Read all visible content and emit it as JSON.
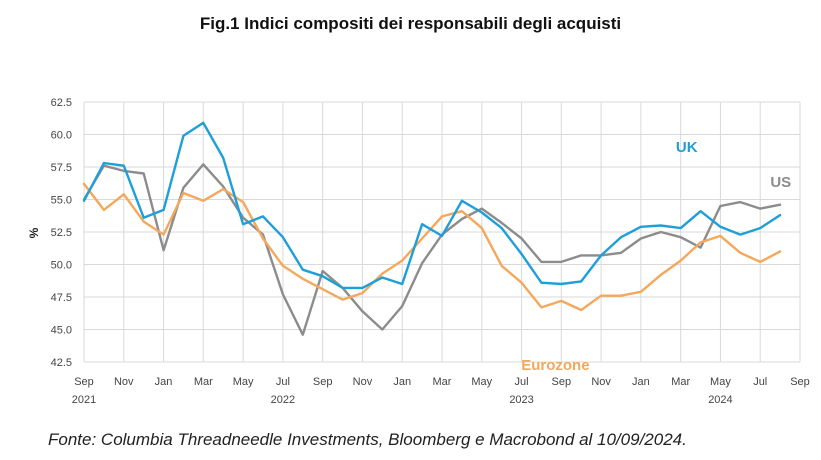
{
  "chart_data": {
    "type": "line",
    "title": "Fig.1 Indici compositi dei responsabili degli acquisti",
    "ylabel": "%",
    "ylim": [
      42.5,
      62.5
    ],
    "yticks": [
      "62.5",
      "60.0",
      "57.5",
      "55.0",
      "52.5",
      "50.0",
      "47.5",
      "45.0",
      "42.5"
    ],
    "grid": true,
    "x": [
      "2021-09",
      "2021-10",
      "2021-11",
      "2021-12",
      "2022-01",
      "2022-02",
      "2022-03",
      "2022-04",
      "2022-05",
      "2022-06",
      "2022-07",
      "2022-08",
      "2022-09",
      "2022-10",
      "2022-11",
      "2022-12",
      "2023-01",
      "2023-02",
      "2023-03",
      "2023-04",
      "2023-05",
      "2023-06",
      "2023-07",
      "2023-08",
      "2023-09",
      "2023-10",
      "2023-11",
      "2023-12",
      "2024-01",
      "2024-02",
      "2024-03",
      "2024-04",
      "2024-05",
      "2024-06",
      "2024-07",
      "2024-08"
    ],
    "x_ticks": [
      {
        "month": "Sep",
        "year": "2021",
        "date": "2021-09"
      },
      {
        "month": "Nov",
        "year": "",
        "date": "2021-11"
      },
      {
        "month": "Jan",
        "year": "",
        "date": "2022-01"
      },
      {
        "month": "Mar",
        "year": "",
        "date": "2022-03"
      },
      {
        "month": "May",
        "year": "",
        "date": "2022-05"
      },
      {
        "month": "Jul",
        "year": "2022",
        "date": "2022-07"
      },
      {
        "month": "Sep",
        "year": "",
        "date": "2022-09"
      },
      {
        "month": "Nov",
        "year": "",
        "date": "2022-11"
      },
      {
        "month": "Jan",
        "year": "",
        "date": "2023-01"
      },
      {
        "month": "Mar",
        "year": "",
        "date": "2023-03"
      },
      {
        "month": "May",
        "year": "",
        "date": "2023-05"
      },
      {
        "month": "Jul",
        "year": "2023",
        "date": "2023-07"
      },
      {
        "month": "Sep",
        "year": "",
        "date": "2023-09"
      },
      {
        "month": "Nov",
        "year": "",
        "date": "2023-11"
      },
      {
        "month": "Jan",
        "year": "",
        "date": "2024-01"
      },
      {
        "month": "Mar",
        "year": "",
        "date": "2024-03"
      },
      {
        "month": "May",
        "year": "2024",
        "date": "2024-05"
      },
      {
        "month": "Jul",
        "year": "",
        "date": "2024-07"
      },
      {
        "month": "Sep",
        "year": "",
        "date": "2024-09"
      }
    ],
    "year_labels": [
      "2021",
      "2022",
      "2023",
      "2024"
    ],
    "series": [
      {
        "name": "UK",
        "color": "#1f9fd8",
        "values": [
          54.9,
          57.8,
          57.6,
          53.6,
          54.2,
          59.9,
          60.9,
          58.2,
          53.1,
          53.7,
          52.1,
          49.6,
          49.1,
          48.2,
          48.2,
          49.0,
          48.5,
          53.1,
          52.2,
          54.9,
          54.0,
          52.8,
          50.8,
          48.6,
          48.5,
          48.7,
          50.7,
          52.1,
          52.9,
          53.0,
          52.8,
          54.1,
          52.9,
          52.3,
          52.8,
          53.8
        ]
      },
      {
        "name": "US",
        "color": "#8c8c8c",
        "values": [
          55.0,
          57.6,
          57.2,
          57.0,
          51.1,
          55.9,
          57.7,
          56.0,
          53.6,
          52.3,
          47.7,
          44.6,
          49.5,
          48.2,
          46.4,
          45.0,
          46.8,
          50.1,
          52.3,
          53.5,
          54.3,
          53.2,
          52.0,
          50.2,
          50.2,
          50.7,
          50.7,
          50.9,
          52.0,
          52.5,
          52.1,
          51.3,
          54.5,
          54.8,
          54.3,
          54.6
        ]
      },
      {
        "name": "Eurozone",
        "color": "#f4a85c",
        "values": [
          56.2,
          54.2,
          55.4,
          53.3,
          52.3,
          55.5,
          54.9,
          55.8,
          54.8,
          52.0,
          49.9,
          48.9,
          48.1,
          47.3,
          47.8,
          49.3,
          50.3,
          52.0,
          53.7,
          54.1,
          52.8,
          49.9,
          48.6,
          46.7,
          47.2,
          46.5,
          47.6,
          47.6,
          47.9,
          49.2,
          50.3,
          51.7,
          52.2,
          50.9,
          50.2,
          51.0
        ]
      }
    ],
    "source": "Fonte: Columbia Threadneedle Investments, Bloomberg e Macrobond al 10/09/2024."
  }
}
